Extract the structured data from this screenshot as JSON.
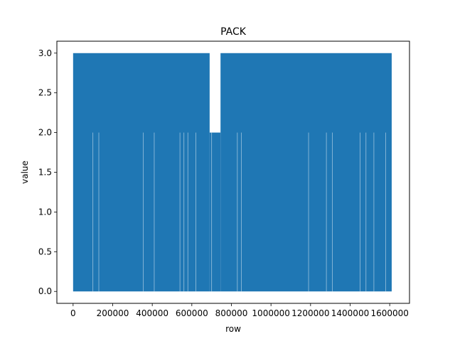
{
  "chart_data": {
    "type": "line",
    "title": "PACK",
    "xlabel": "row",
    "ylabel": "value",
    "xlim": [
      -82000,
      1700000
    ],
    "ylim": [
      -0.15,
      3.15
    ],
    "xticks": [
      0,
      200000,
      400000,
      600000,
      800000,
      1000000,
      1200000,
      1400000,
      1600000
    ],
    "xtick_labels": [
      "0",
      "200000",
      "400000",
      "600000",
      "800000",
      "1000000",
      "1200000",
      "1400000",
      "1600000"
    ],
    "yticks": [
      0.0,
      0.5,
      1.0,
      1.5,
      2.0,
      2.5,
      3.0
    ],
    "ytick_labels": [
      "0.0",
      "0.5",
      "1.0",
      "1.5",
      "2.0",
      "2.5",
      "3.0"
    ],
    "grid": false,
    "series": [
      {
        "color": "#1f77b4",
        "x_range": [
          0,
          1610000
        ],
        "values_min": 0,
        "values_max": 3,
        "segments": [
          {
            "x": [
              0,
              690000
            ],
            "low": 0,
            "high": 3
          },
          {
            "x": [
              690000,
              745000
            ],
            "low": 0,
            "high": 2
          },
          {
            "x": [
              745000,
              1610000
            ],
            "low": 0,
            "high": 3
          }
        ]
      }
    ]
  }
}
